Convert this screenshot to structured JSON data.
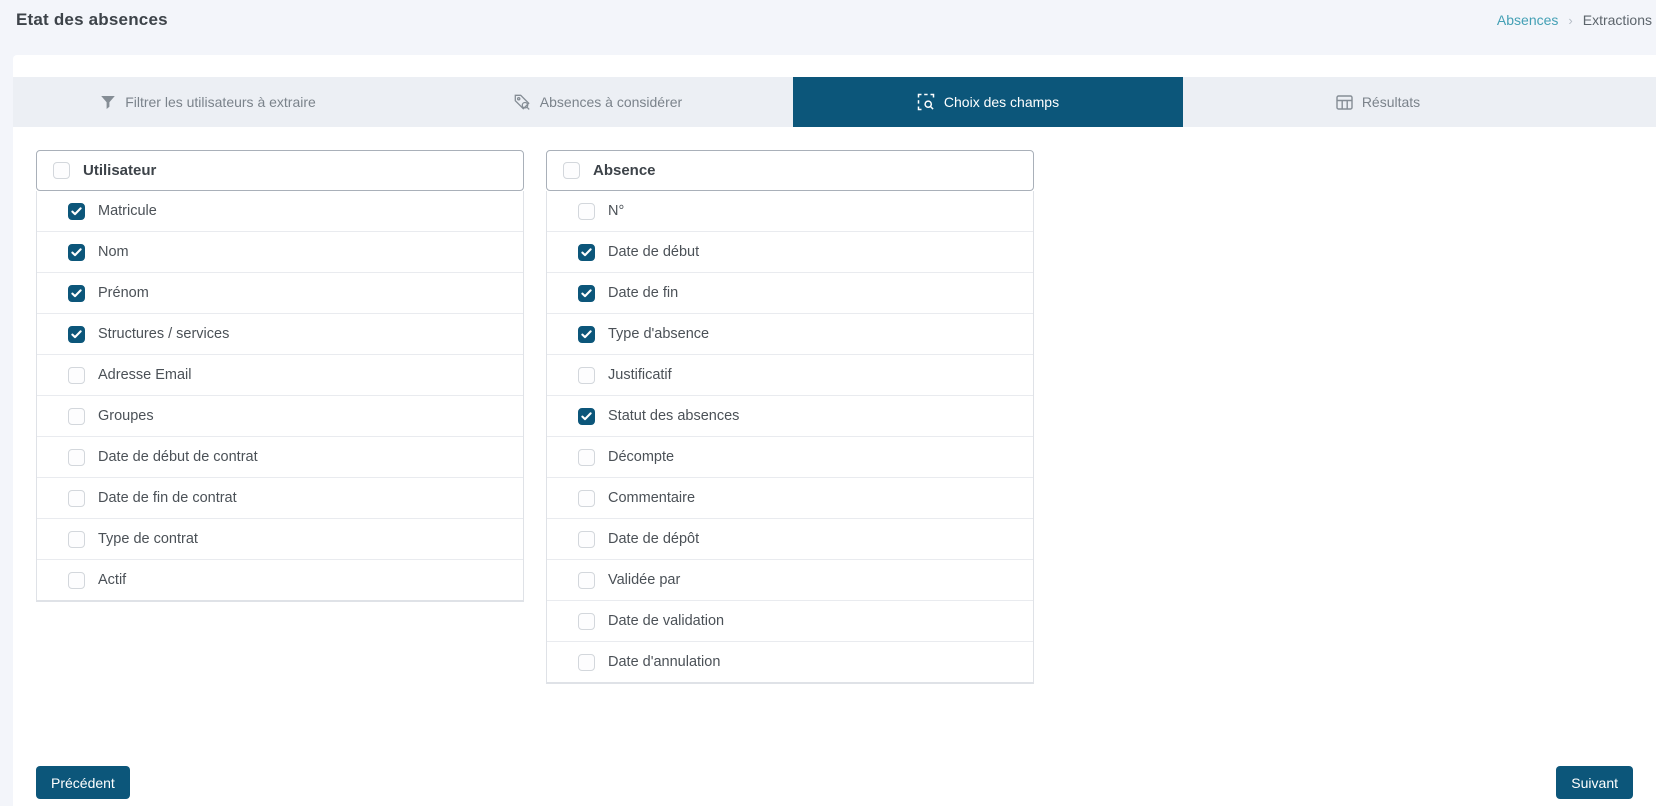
{
  "page": {
    "title": "Etat des absences",
    "breadcrumb": {
      "items": [
        "Absences",
        "Extractions"
      ],
      "separator": "›"
    }
  },
  "tabs": [
    {
      "id": "filter-users",
      "label": "Filtrer les utilisateurs à extraire",
      "icon": "filter-icon",
      "active": false
    },
    {
      "id": "absences-to-consider",
      "label": "Absences à considérer",
      "icon": "tag-search-icon",
      "active": false
    },
    {
      "id": "field-choice",
      "label": "Choix des champs",
      "icon": "field-select-icon",
      "active": true
    },
    {
      "id": "results",
      "label": "Résultats",
      "icon": "table-icon",
      "active": false
    }
  ],
  "panels": [
    {
      "id": "utilisateur",
      "title": "Utilisateur",
      "header_checked": false,
      "items": [
        {
          "label": "Matricule",
          "checked": true
        },
        {
          "label": "Nom",
          "checked": true
        },
        {
          "label": "Prénom",
          "checked": true
        },
        {
          "label": "Structures / services",
          "checked": true
        },
        {
          "label": "Adresse Email",
          "checked": false
        },
        {
          "label": "Groupes",
          "checked": false
        },
        {
          "label": "Date de début de contrat",
          "checked": false
        },
        {
          "label": "Date de fin de contrat",
          "checked": false
        },
        {
          "label": "Type de contrat",
          "checked": false
        },
        {
          "label": "Actif",
          "checked": false
        }
      ]
    },
    {
      "id": "absence",
      "title": "Absence",
      "header_checked": false,
      "items": [
        {
          "label": "N°",
          "checked": false
        },
        {
          "label": "Date de début",
          "checked": true
        },
        {
          "label": "Date de fin",
          "checked": true
        },
        {
          "label": "Type d'absence",
          "checked": true
        },
        {
          "label": "Justificatif",
          "checked": false
        },
        {
          "label": "Statut des absences",
          "checked": true
        },
        {
          "label": "Décompte",
          "checked": false
        },
        {
          "label": "Commentaire",
          "checked": false
        },
        {
          "label": "Date de dépôt",
          "checked": false
        },
        {
          "label": "Validée par",
          "checked": false
        },
        {
          "label": "Date de validation",
          "checked": false
        },
        {
          "label": "Date d'annulation",
          "checked": false
        }
      ]
    }
  ],
  "footer": {
    "previous_label": "Précédent",
    "next_label": "Suivant"
  },
  "colors": {
    "accent": "#0c567a",
    "tabbar_bg": "#eceff4",
    "page_bg": "#f3f5fa",
    "breadcrumb_link": "#44a0b5"
  }
}
